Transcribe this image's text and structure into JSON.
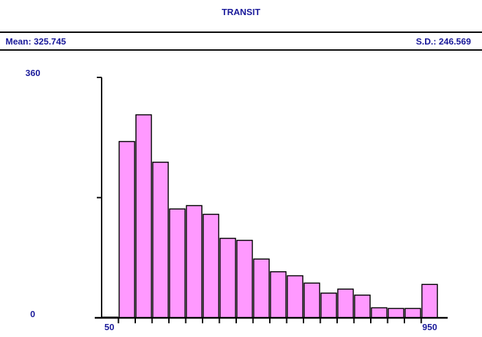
{
  "chart_data": {
    "type": "bar",
    "title": "TRANSIT",
    "mean_label": "Mean: 325.745",
    "sd_label": "S.D.: 246.569",
    "xlabel": "",
    "ylabel": "",
    "ylim": [
      0,
      360
    ],
    "y_tick_labels": [
      "0",
      "360"
    ],
    "y_ticks": [
      0,
      180,
      360
    ],
    "x_tick_labels": [
      "50",
      "950"
    ],
    "xlim": [
      50,
      950
    ],
    "bin_width": 50,
    "categories": [
      "<50",
      "50-100",
      "100-150",
      "150-200",
      "200-250",
      "250-300",
      "300-350",
      "350-400",
      "400-450",
      "450-500",
      "500-550",
      "550-600",
      "600-650",
      "650-700",
      "700-750",
      "750-800",
      "800-850",
      "850-900",
      "900-950",
      ">950"
    ],
    "values": [
      1,
      264,
      304,
      233,
      163,
      168,
      155,
      119,
      116,
      88,
      69,
      63,
      52,
      37,
      43,
      34,
      15,
      14,
      14,
      50
    ],
    "grid": false,
    "colors": {
      "bar": "#ff99ff",
      "text": "#1a1a9a",
      "axis": "#000000"
    }
  }
}
